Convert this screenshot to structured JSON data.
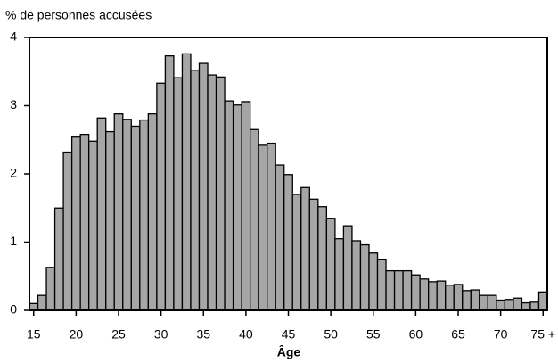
{
  "chart_data": {
    "type": "bar",
    "ylabel": "% de personnes accusées",
    "xlabel": "Âge",
    "categories": [
      "15",
      null,
      null,
      null,
      null,
      "20",
      null,
      null,
      null,
      null,
      "25",
      null,
      null,
      null,
      null,
      "30",
      null,
      null,
      null,
      null,
      "35",
      null,
      null,
      null,
      null,
      "40",
      null,
      null,
      null,
      null,
      "45",
      null,
      null,
      null,
      null,
      "50",
      null,
      null,
      null,
      null,
      "55",
      null,
      null,
      null,
      null,
      "60",
      null,
      null,
      null,
      null,
      "65",
      null,
      null,
      null,
      null,
      "70",
      null,
      null,
      null,
      null,
      "75 +"
    ],
    "values": [
      0.1,
      0.22,
      0.63,
      1.5,
      2.32,
      2.54,
      2.58,
      2.48,
      2.82,
      2.62,
      2.88,
      2.8,
      2.7,
      2.79,
      2.88,
      3.33,
      3.73,
      3.41,
      3.76,
      3.52,
      3.62,
      3.45,
      3.42,
      3.07,
      3.01,
      3.06,
      2.65,
      2.42,
      2.45,
      2.13,
      1.99,
      1.7,
      1.8,
      1.63,
      1.52,
      1.35,
      1.05,
      1.24,
      1.02,
      0.96,
      0.84,
      0.75,
      0.58,
      0.58,
      0.58,
      0.52,
      0.46,
      0.42,
      0.43,
      0.37,
      0.38,
      0.29,
      0.3,
      0.22,
      0.22,
      0.15,
      0.16,
      0.18,
      0.11,
      0.12,
      0.27
    ],
    "color": "#a6a6a6",
    "ylim": [
      0,
      4
    ],
    "yticks": [
      0,
      1,
      2,
      3,
      4
    ],
    "grid": false
  }
}
